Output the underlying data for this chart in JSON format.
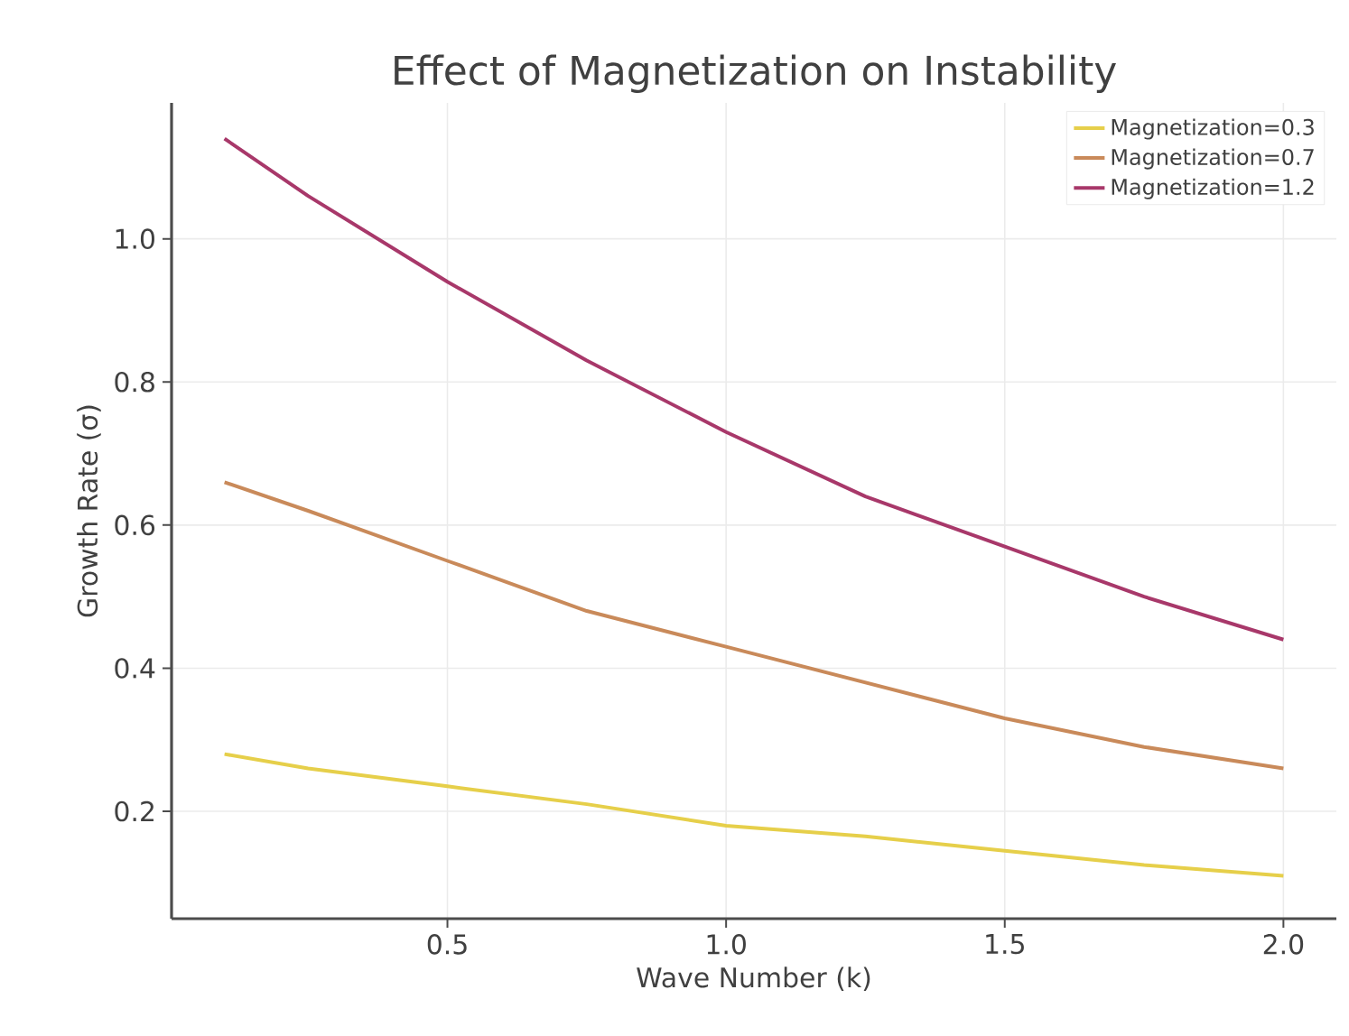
{
  "chart_data": {
    "type": "line",
    "title": "Effect of Magnetization on Instability",
    "xlabel": "Wave Number (k)",
    "ylabel": "Growth Rate (σ)",
    "x": [
      0.1,
      0.25,
      0.5,
      0.75,
      1.0,
      1.25,
      1.5,
      1.75,
      2.0
    ],
    "series": [
      {
        "name": "Magnetization=0.3",
        "color": "#e6cf4a",
        "values": [
          0.28,
          0.26,
          0.235,
          0.21,
          0.18,
          0.165,
          0.145,
          0.125,
          0.11
        ]
      },
      {
        "name": "Magnetization=0.7",
        "color": "#c98a5a",
        "values": [
          0.66,
          0.62,
          0.55,
          0.48,
          0.43,
          0.38,
          0.33,
          0.29,
          0.26
        ]
      },
      {
        "name": "Magnetization=1.2",
        "color": "#a8386a",
        "values": [
          1.14,
          1.06,
          0.94,
          0.83,
          0.73,
          0.64,
          0.57,
          0.5,
          0.44
        ]
      }
    ],
    "xlim": [
      0.005,
      2.095
    ],
    "ylim": [
      0.05,
      1.19
    ],
    "xticks": [
      0.5,
      {
        "value": 1,
        "label": "1.0"
      },
      1.5,
      {
        "value": 2,
        "label": "2.0"
      }
    ],
    "yticks": [
      0.2,
      0.4,
      0.6,
      0.8,
      {
        "value": 1,
        "label": "1.0"
      }
    ],
    "grid": true,
    "legend": "top right",
    "marker": "none",
    "line_style": "solid"
  }
}
